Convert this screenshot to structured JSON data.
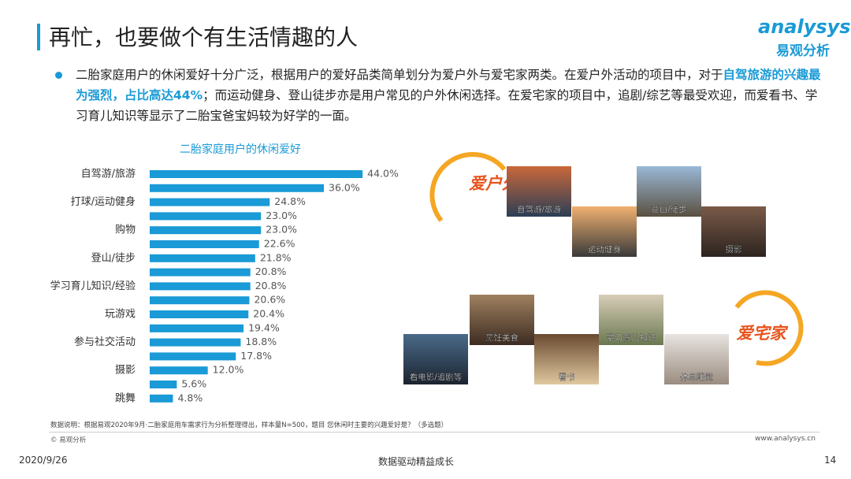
{
  "header": {
    "title": "再忙，也要做个有生活情趣的人",
    "logo_en": "analysys",
    "logo_cn": "易观分析"
  },
  "summary": {
    "part1": "二胎家庭用户的休闲爱好十分广泛，根据用户的爱好品类简单划分为爱户外与爱宅家两类。在爱户外活动的项目中，对于",
    "highlight": "自驾旅游的兴趣最为强烈，占比高达44%",
    "part2": "；而运动健身、登山徒步亦是用户常见的户外休闲选择。在爱宅家的项目中，追剧/综艺等最受欢迎，而爱看书、学习育儿知识等显示了二胎宝爸宝妈较为好学的一面。"
  },
  "chart_data": {
    "type": "hbar",
    "title": "二胎家庭用户的休闲爱好",
    "color": "#1a9ad6",
    "categories": [
      "自驾游/旅游",
      null,
      "打球/运动健身",
      null,
      "购物",
      null,
      "登山/徒步",
      null,
      "学习育儿知识/经验",
      null,
      "玩游戏",
      null,
      "参与社交活动",
      null,
      "摄影",
      null,
      "跳舞"
    ],
    "values": [
      44.0,
      36.0,
      24.8,
      23.0,
      23.0,
      22.6,
      21.8,
      20.8,
      20.8,
      20.6,
      20.4,
      19.4,
      18.8,
      17.8,
      12.0,
      5.6,
      4.8
    ],
    "value_labels": [
      "44.0%",
      "36.0%",
      "24.8%",
      "23.0%",
      "23.0%",
      "22.6%",
      "21.8%",
      "20.8%",
      "20.8%",
      "20.6%",
      "20.4%",
      "19.4%",
      "18.8%",
      "17.8%",
      "12.0%",
      "5.6%",
      "4.8%"
    ]
  },
  "groups": {
    "outdoor": "爱户外",
    "home": "爱宅家"
  },
  "photos": [
    "自驾游/旅游",
    "运动健身",
    "登山/徒步",
    "摄影",
    "烹饪美食",
    "看电影/追剧等",
    "看书",
    "学习育儿知识",
    "休息睡觉"
  ],
  "footer": {
    "note": "数据说明：根据易观2020年9月·二胎家庭用车需求行为分析整理得出，样本量N=500，题目 您休闲时主要的兴趣爱好是？（多选题）",
    "copyright": "© 易观分析",
    "website": "www.analysys.cn",
    "date": "2020/9/26",
    "slogan": "数据驱动精益成长",
    "page": "14"
  }
}
